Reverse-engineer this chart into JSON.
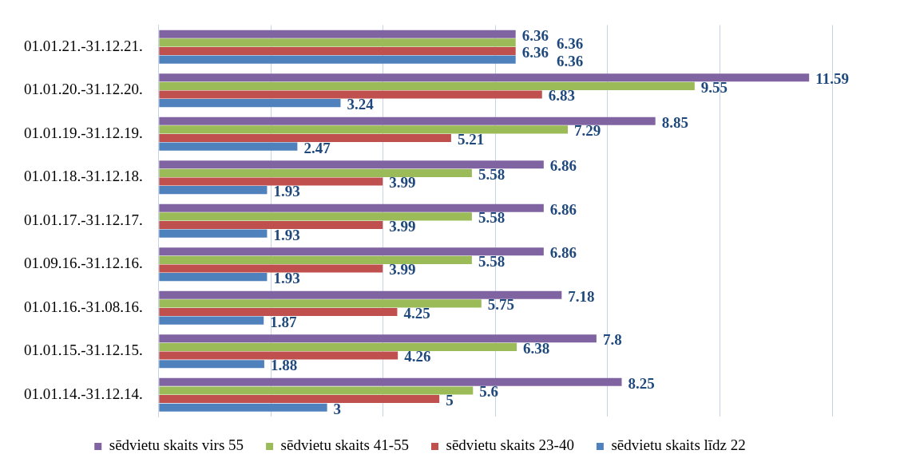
{
  "chart_data": {
    "type": "bar",
    "orientation": "horizontal",
    "categories": [
      "01.01.21.-31.12.21.",
      "01.01.20.-31.12.20.",
      "01.01.19.-31.12.19.",
      "01.01.18.-31.12.18.",
      "01.01.17.-31.12.17.",
      "01.09.16.-31.12.16.",
      "01.01.16.-31.08.16.",
      "01.01.15.-31.12.15.",
      "01.01.14.-31.12.14."
    ],
    "series": [
      {
        "name": "sēdvietu skaits virs 55",
        "color": "#8064a2",
        "values": [
          6.36,
          11.59,
          8.85,
          6.86,
          6.86,
          6.86,
          7.18,
          7.8,
          8.25
        ]
      },
      {
        "name": "sēdvietu skaits 41-55",
        "color": "#9bbb59",
        "values": [
          6.36,
          9.55,
          7.29,
          5.58,
          5.58,
          5.58,
          5.75,
          6.38,
          5.6
        ]
      },
      {
        "name": "sēdvietu skaits 23-40",
        "color": "#c0504d",
        "values": [
          6.36,
          6.83,
          5.21,
          3.99,
          3.99,
          3.99,
          4.25,
          4.26,
          5
        ]
      },
      {
        "name": "sēdvietu skaits līdz 22",
        "color": "#4f81bd",
        "values": [
          6.36,
          3.24,
          2.47,
          1.93,
          1.93,
          1.93,
          1.87,
          1.88,
          3
        ]
      }
    ],
    "xlim": [
      0,
      12
    ],
    "xticks": [
      {
        "value": 0,
        "label": null
      },
      {
        "value": 2,
        "label": null
      },
      {
        "value": 4,
        "label": null
      },
      {
        "value": 6,
        "label": null
      },
      {
        "value": 8,
        "label": null
      },
      {
        "value": 10,
        "label": null
      },
      {
        "value": 12,
        "label": null
      }
    ],
    "tick_labels": "y",
    "grid": "x",
    "legend": "bottom",
    "data_labels": true
  }
}
